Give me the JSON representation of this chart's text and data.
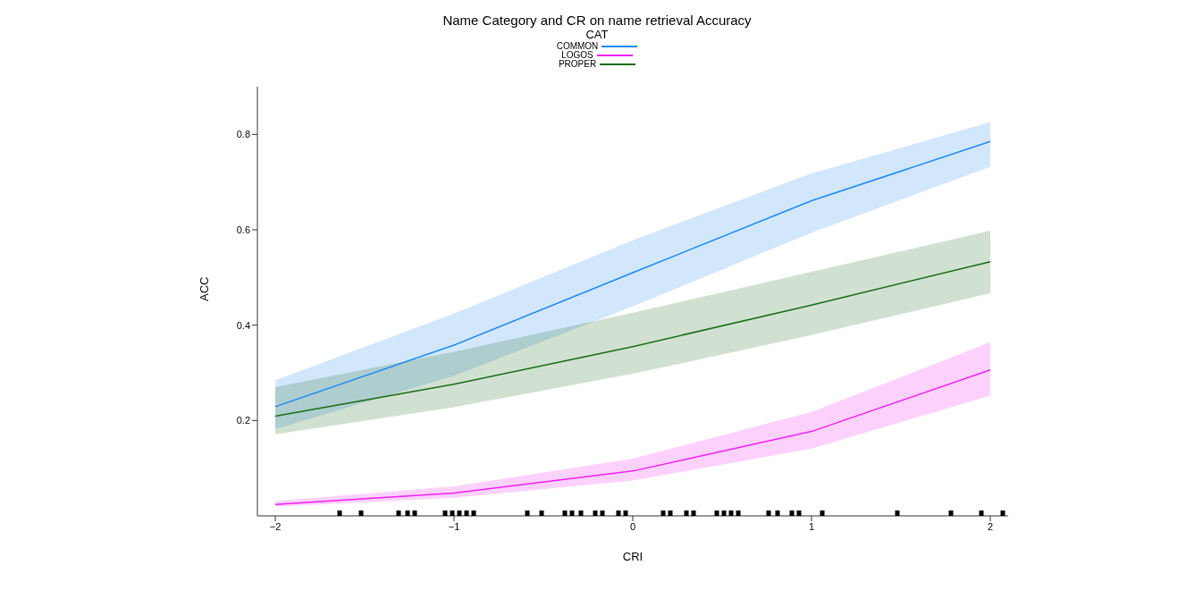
{
  "chart_data": {
    "type": "line",
    "title": "Name Category and CR on name retrieval Accuracy",
    "xlabel": "CRI",
    "ylabel": "ACC",
    "legend_title": "CAT",
    "legend": "top",
    "marker": "none",
    "line_style": "solid",
    "xlim": [
      -2.1,
      2.1
    ],
    "xticks": [
      {
        "value": -2,
        "label": "−2"
      },
      {
        "value": -1,
        "label": "−1"
      },
      0,
      1,
      2
    ],
    "ylim": [
      0,
      0.9
    ],
    "yticks": [
      0.2,
      0.4,
      0.6,
      0.8
    ],
    "x": [
      -2,
      -1,
      0,
      1,
      2
    ],
    "series": [
      {
        "name": "COMMON",
        "color": "#1f88f0",
        "values": [
          0.229,
          0.358,
          0.51,
          0.661,
          0.785
        ],
        "lower": [
          0.182,
          0.294,
          0.439,
          0.594,
          0.732
        ],
        "upper": [
          0.284,
          0.424,
          0.578,
          0.718,
          0.826
        ]
      },
      {
        "name": "LOGOS",
        "color": "#f020f0",
        "values": [
          0.024,
          0.048,
          0.094,
          0.177,
          0.306
        ],
        "lower": [
          0.019,
          0.038,
          0.074,
          0.141,
          0.252
        ],
        "upper": [
          0.031,
          0.062,
          0.12,
          0.218,
          0.364
        ]
      },
      {
        "name": "PROPER",
        "color": "#1a6b1a",
        "values": [
          0.209,
          0.276,
          0.355,
          0.442,
          0.533
        ],
        "lower": [
          0.171,
          0.228,
          0.298,
          0.379,
          0.467
        ],
        "upper": [
          0.27,
          0.344,
          0.426,
          0.512,
          0.598
        ]
      },
      {
        "type": "scatter",
        "marker": "square",
        "color": "#000000",
        "x": [
          -1.64,
          -1.52,
          -1.31,
          -1.26,
          -1.22,
          -1.05,
          -1.01,
          -0.97,
          -0.93,
          -0.89,
          -0.59,
          -0.51,
          -0.38,
          -0.34,
          -0.29,
          -0.21,
          -0.17,
          -0.08,
          -0.04,
          0.17,
          0.21,
          0.3,
          0.34,
          0.47,
          0.51,
          0.55,
          0.59,
          0.76,
          0.81,
          0.89,
          0.93,
          1.06,
          1.48,
          1.78,
          1.95,
          2.07
        ],
        "values": [
          0,
          0,
          0,
          0,
          0,
          0,
          0,
          0,
          0,
          0,
          0,
          0,
          0,
          0,
          0,
          0,
          0,
          0,
          0,
          0,
          0,
          0,
          0,
          0,
          0,
          0,
          0,
          0,
          0,
          0,
          0,
          0,
          0,
          0,
          0,
          0
        ]
      }
    ]
  }
}
